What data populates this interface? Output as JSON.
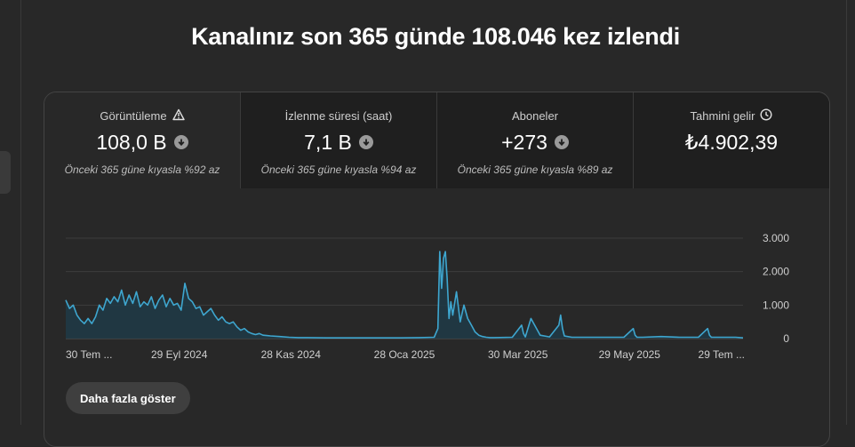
{
  "headline": "Kanalınız son 365 günde 108.046 kez izlendi",
  "tabs": [
    {
      "label": "Görüntüleme",
      "icon": "warning-icon",
      "value": "108,0 B",
      "compare": "Önceki 365 güne kıyasla %92 az",
      "active": true
    },
    {
      "label": "İzlenme süresi (saat)",
      "icon": "",
      "value": "7,1 B",
      "compare": "Önceki 365 güne kıyasla %94 az",
      "active": false
    },
    {
      "label": "Aboneler",
      "icon": "",
      "value": "+273",
      "compare": "Önceki 365 güne kıyasla %89 az",
      "active": false
    },
    {
      "label": "Tahmini gelir",
      "icon": "clock-icon",
      "value": "₺4.902,39",
      "compare": "",
      "active": false
    }
  ],
  "more_button": "Daha fazla göster",
  "colors": {
    "line": "#3ea6cf",
    "area": "#1e3a46",
    "grid": "#3c3c3c"
  },
  "chart_data": {
    "type": "area",
    "x_tick_labels": [
      "30 Tem ...",
      "29 Eyl 2024",
      "28 Kas 2024",
      "28 Oca 2025",
      "30 Mar 2025",
      "29 May 2025",
      "29 Tem ..."
    ],
    "y_tick_labels": [
      "0",
      "1.000",
      "2.000",
      "3.000"
    ],
    "ylim": [
      0,
      3000
    ],
    "y_ticks": [
      0,
      1000,
      2000,
      3000
    ],
    "day_count": 365,
    "x_tick_days": [
      0,
      61,
      121,
      182,
      243,
      303,
      364
    ],
    "series": [
      {
        "x": [
          0,
          2,
          4,
          6,
          8,
          10,
          12,
          14,
          16,
          18,
          20,
          22,
          24,
          26,
          28,
          30,
          32,
          34,
          36,
          38,
          40,
          42,
          44,
          46,
          48,
          50,
          52,
          54,
          56,
          58,
          60,
          62,
          64,
          66,
          68,
          70,
          72,
          74,
          76,
          78,
          80,
          82,
          84,
          86,
          88,
          90,
          92,
          94,
          96,
          98,
          100,
          102,
          104,
          106,
          108,
          110,
          115,
          120,
          125,
          130,
          140,
          150,
          160,
          170,
          180,
          190,
          198,
          200,
          201,
          202,
          203,
          204,
          205,
          206,
          207,
          208,
          210,
          212,
          214,
          216,
          218,
          220,
          222,
          224,
          226,
          228,
          230,
          240,
          245,
          246,
          247,
          250,
          255,
          260,
          265,
          266,
          267,
          268,
          272,
          280,
          290,
          300,
          305,
          306,
          307,
          310,
          320,
          330,
          340,
          345,
          346,
          347,
          350,
          360,
          364
        ],
        "y": [
          1150,
          900,
          1000,
          700,
          550,
          450,
          600,
          450,
          650,
          1000,
          850,
          1200,
          1050,
          1250,
          1100,
          1450,
          1000,
          1300,
          1050,
          1400,
          950,
          1100,
          1000,
          1250,
          900,
          1150,
          1300,
          950,
          1200,
          1000,
          1050,
          850,
          1650,
          1200,
          1100,
          900,
          950,
          700,
          800,
          900,
          700,
          550,
          650,
          500,
          450,
          500,
          350,
          250,
          300,
          200,
          150,
          120,
          150,
          100,
          90,
          80,
          60,
          40,
          30,
          30,
          20,
          20,
          20,
          20,
          20,
          30,
          40,
          300,
          2600,
          1500,
          2400,
          2600,
          1800,
          600,
          1100,
          700,
          1400,
          500,
          1000,
          600,
          400,
          200,
          100,
          60,
          40,
          30,
          30,
          40,
          400,
          150,
          50,
          600,
          100,
          50,
          400,
          700,
          300,
          80,
          40,
          40,
          40,
          40,
          300,
          100,
          40,
          40,
          60,
          40,
          40,
          300,
          100,
          40,
          40,
          40,
          20
        ]
      }
    ]
  }
}
